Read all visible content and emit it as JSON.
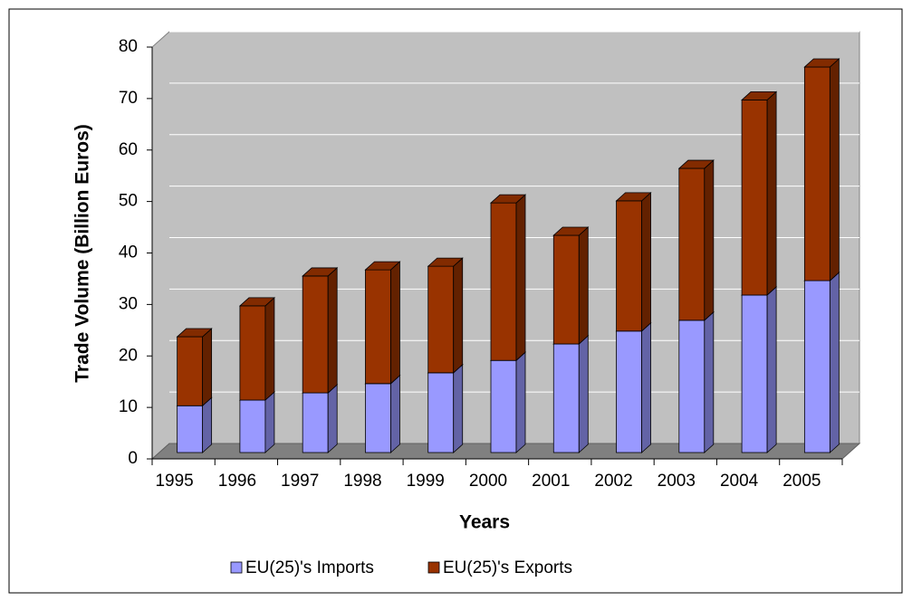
{
  "chart_data": {
    "type": "bar3d_stacked",
    "y_label": "Trade Volume (Billion Euros)",
    "x_label": "Years",
    "categories": [
      "1995",
      "1996",
      "1997",
      "1998",
      "1999",
      "2000",
      "2001",
      "2002",
      "2003",
      "2004",
      "2005"
    ],
    "series": [
      {
        "name": "EU(25)'s Imports",
        "color": "#9999ff",
        "values": [
          9.1,
          10.2,
          11.6,
          13.4,
          15.5,
          17.9,
          21.1,
          23.6,
          25.7,
          30.6,
          33.4
        ]
      },
      {
        "name": "EU(25)'s Exports",
        "color": "#993300",
        "values": [
          13.4,
          18.3,
          22.7,
          22.1,
          20.7,
          30.6,
          21.1,
          25.3,
          29.5,
          37.9,
          41.5
        ]
      }
    ],
    "ylim": [
      0,
      80
    ],
    "yticks": [
      0,
      10,
      20,
      30,
      40,
      50,
      60,
      70,
      80
    ],
    "grid": true,
    "legend": "bottom"
  }
}
